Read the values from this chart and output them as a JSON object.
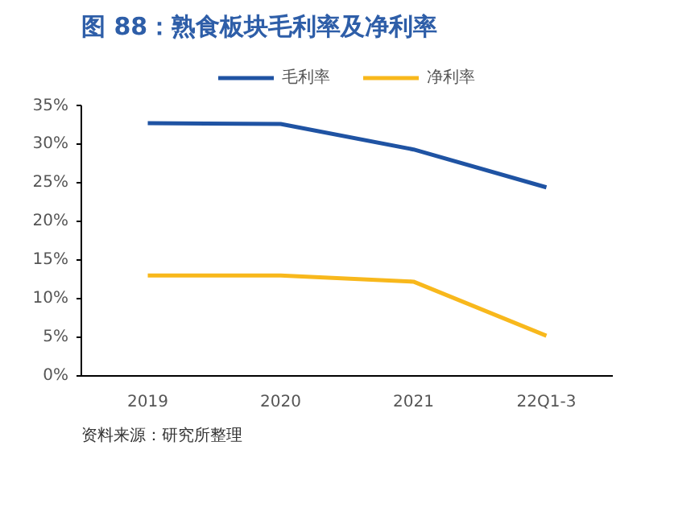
{
  "chart_data": {
    "type": "line",
    "title": "图 88：熟食板块毛利率及净利率",
    "categories": [
      "2019",
      "2020",
      "2021",
      "22Q1-3"
    ],
    "series": [
      {
        "name": "毛利率",
        "color": "#1f53a3",
        "values": [
          32.7,
          32.6,
          29.3,
          24.4
        ]
      },
      {
        "name": "净利率",
        "color": "#f8b81c",
        "values": [
          13.0,
          13.0,
          12.2,
          5.2
        ]
      }
    ],
    "ylim": [
      0,
      35
    ],
    "yticks": [
      {
        "value": 0,
        "label": "0%"
      },
      {
        "value": 5,
        "label": "5%"
      },
      {
        "value": 10,
        "label": "10%"
      },
      {
        "value": 15,
        "label": "15%"
      },
      {
        "value": 20,
        "label": "20%"
      },
      {
        "value": 25,
        "label": "25%"
      },
      {
        "value": 30,
        "label": "30%"
      },
      {
        "value": 35,
        "label": "35%"
      }
    ],
    "grid": false,
    "legend": "top",
    "line_style": "solid",
    "annotations": [
      "资料来源：研究所整理"
    ]
  }
}
